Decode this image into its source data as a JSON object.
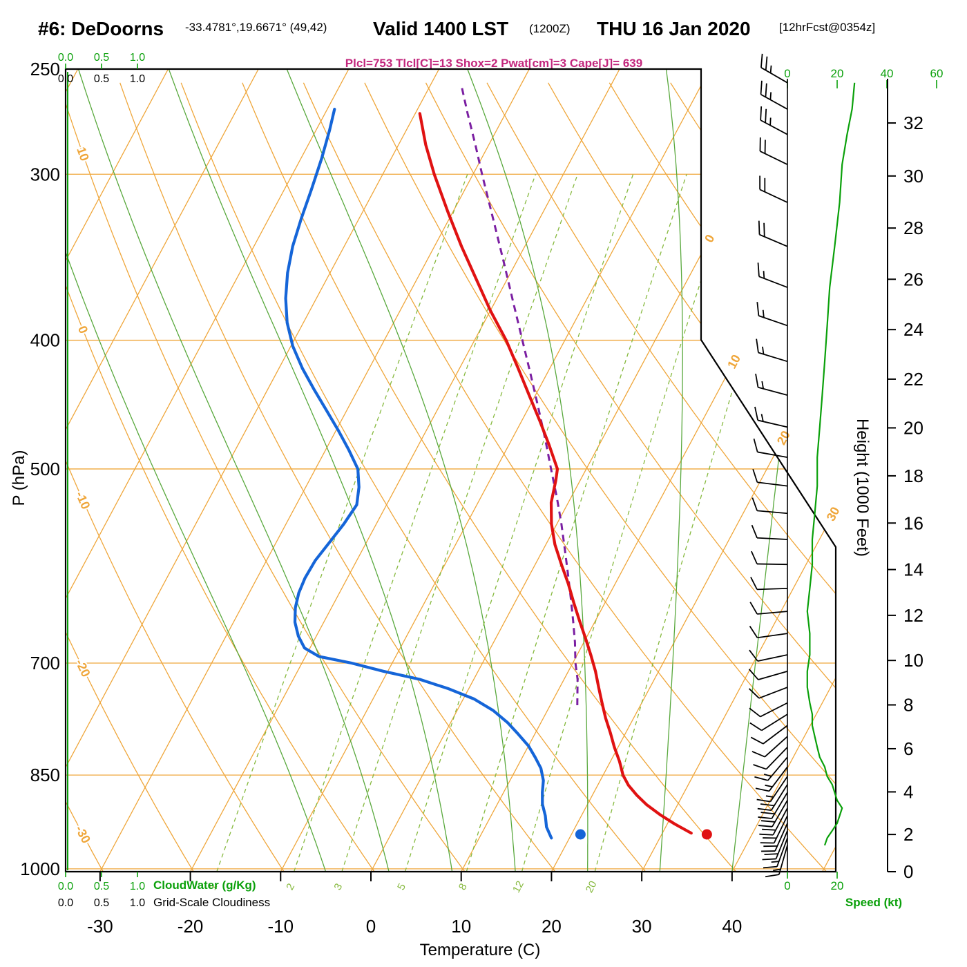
{
  "title": {
    "station": "#6: DeDoorns",
    "coords": "-33.4781°,19.6671° (49,42)",
    "valid": "Valid 1400 LST",
    "zulu": "(1200Z)",
    "date": "THU 16 Jan 2020",
    "fcst": "[12hrFcst@0354z]",
    "params": "Plcl=753 Tlcl[C]=13 Shox=2 Pwat[cm]=3 Cape[J]= 639"
  },
  "axes": {
    "pressure": {
      "label": "P (hPa)",
      "ticks": [
        250,
        300,
        400,
        500,
        700,
        850,
        1000
      ]
    },
    "temperature": {
      "label": "Temperature (C)",
      "ticks": [
        -30,
        -20,
        -10,
        0,
        10,
        20,
        30,
        40
      ]
    },
    "height": {
      "label": "Height (1000 Feet)"
    },
    "speed": {
      "label": "Speed (kt)",
      "ticks": [
        0,
        20,
        40,
        60
      ],
      "bottom_ticks": [
        0,
        20
      ]
    },
    "cloudwater": {
      "label": "CloudWater (g/Kg)",
      "ticks": [
        "0.0",
        "0.5",
        "1.0"
      ]
    },
    "cloudiness": {
      "label": "Grid-Scale Cloudiness",
      "ticks": [
        "0.0",
        "0.5",
        "1.0"
      ]
    }
  },
  "colors": {
    "isotherm": "#efa63a",
    "pressure_line": "#efa63a",
    "dry_adiabat": "#efa63a",
    "moist_adiabat": "#58a83c",
    "mixing_ratio": "#86b93e",
    "temperature": "#e01212",
    "dewpoint": "#1565d8",
    "parcel": "#7b1fa2",
    "wind_barb": "#000000",
    "speed_curve": "#0aa00a",
    "green_axis": "#0aa00a",
    "params_text": "#c2267c"
  },
  "chart_data": {
    "type": "skewt_log_p_sounding",
    "pressure_range_hPa": [
      250,
      1005
    ],
    "indices": {
      "Plcl_hPa": 753,
      "Tlcl_C": 13,
      "Showalter": 2,
      "Pwat_cm": 3,
      "Cape_J": 639
    },
    "temperature_profile": {
      "name": "Temperature (C)",
      "points_p_t": [
        [
          940,
          33.2
        ],
        [
          925,
          30.8
        ],
        [
          910,
          28.6
        ],
        [
          895,
          26.6
        ],
        [
          880,
          24.9
        ],
        [
          865,
          23.4
        ],
        [
          850,
          22.2
        ],
        [
          830,
          21.0
        ],
        [
          810,
          19.6
        ],
        [
          790,
          18.3
        ],
        [
          770,
          16.9
        ],
        [
          750,
          15.6
        ],
        [
          730,
          14.3
        ],
        [
          710,
          13.0
        ],
        [
          690,
          11.5
        ],
        [
          670,
          9.9
        ],
        [
          650,
          8.2
        ],
        [
          630,
          6.5
        ],
        [
          610,
          4.8
        ],
        [
          590,
          2.9
        ],
        [
          570,
          1.0
        ],
        [
          550,
          -0.6
        ],
        [
          530,
          -1.9
        ],
        [
          510,
          -2.7
        ],
        [
          500,
          -3.2
        ],
        [
          480,
          -5.5
        ],
        [
          460,
          -8.0
        ],
        [
          440,
          -10.7
        ],
        [
          420,
          -13.5
        ],
        [
          400,
          -16.5
        ],
        [
          380,
          -20.0
        ],
        [
          360,
          -23.4
        ],
        [
          340,
          -27.0
        ],
        [
          320,
          -30.6
        ],
        [
          300,
          -34.3
        ],
        [
          285,
          -37.0
        ],
        [
          270,
          -39.5
        ]
      ]
    },
    "dewpoint_profile": {
      "name": "Dewpoint (C)",
      "points_p_t": [
        [
          948,
          18.0
        ],
        [
          930,
          16.8
        ],
        [
          912,
          16.0
        ],
        [
          894,
          15.0
        ],
        [
          876,
          14.3
        ],
        [
          858,
          13.7
        ],
        [
          840,
          12.7
        ],
        [
          824,
          11.4
        ],
        [
          808,
          10.0
        ],
        [
          792,
          8.2
        ],
        [
          776,
          6.3
        ],
        [
          760,
          4.0
        ],
        [
          745,
          1.2
        ],
        [
          732,
          -2.2
        ],
        [
          720,
          -6.0
        ],
        [
          710,
          -10.5
        ],
        [
          700,
          -14.5
        ],
        [
          692,
          -18.5
        ],
        [
          682,
          -20.6
        ],
        [
          668,
          -22.0
        ],
        [
          652,
          -23.2
        ],
        [
          636,
          -24.0
        ],
        [
          620,
          -24.5
        ],
        [
          604,
          -24.7
        ],
        [
          586,
          -24.6
        ],
        [
          568,
          -24.1
        ],
        [
          550,
          -23.6
        ],
        [
          532,
          -23.3
        ],
        [
          516,
          -24.1
        ],
        [
          500,
          -25.3
        ],
        [
          484,
          -27.4
        ],
        [
          468,
          -29.7
        ],
        [
          452,
          -32.2
        ],
        [
          436,
          -34.8
        ],
        [
          420,
          -37.4
        ],
        [
          404,
          -39.8
        ],
        [
          388,
          -41.8
        ],
        [
          372,
          -43.4
        ],
        [
          356,
          -44.7
        ],
        [
          340,
          -45.7
        ],
        [
          324,
          -46.4
        ],
        [
          308,
          -47.0
        ],
        [
          292,
          -47.7
        ],
        [
          278,
          -48.5
        ],
        [
          268,
          -49.2
        ]
      ]
    },
    "parcel_profile": {
      "name": "Lifted parcel",
      "points_p_t": [
        [
          753,
          13.0
        ],
        [
          720,
          11.5
        ],
        [
          700,
          10.3
        ],
        [
          675,
          9.0
        ],
        [
          650,
          7.5
        ],
        [
          625,
          5.9
        ],
        [
          600,
          4.2
        ],
        [
          575,
          2.4
        ],
        [
          550,
          0.5
        ],
        [
          525,
          -1.6
        ],
        [
          500,
          -3.9
        ],
        [
          475,
          -6.3
        ],
        [
          450,
          -8.9
        ],
        [
          425,
          -11.7
        ],
        [
          400,
          -14.7
        ],
        [
          375,
          -17.9
        ],
        [
          350,
          -21.3
        ],
        [
          325,
          -25.0
        ],
        [
          300,
          -29.0
        ],
        [
          285,
          -31.5
        ],
        [
          270,
          -34.2
        ],
        [
          258,
          -36.4
        ]
      ]
    },
    "surface_markers": [
      {
        "name": "surface-temperature-dot",
        "p": 942,
        "t": 35.0
      },
      {
        "name": "surface-dewpoint-dot",
        "p": 942,
        "t": 21.0
      }
    ],
    "winds_p_kt_dir": [
      [
        960,
        15,
        196
      ],
      [
        948,
        16,
        200
      ],
      [
        936,
        18,
        202
      ],
      [
        924,
        20,
        204
      ],
      [
        912,
        21,
        206
      ],
      [
        900,
        22,
        208
      ],
      [
        888,
        20,
        210
      ],
      [
        876,
        19,
        211
      ],
      [
        864,
        18,
        212
      ],
      [
        852,
        16,
        214
      ],
      [
        838,
        15,
        217
      ],
      [
        824,
        13,
        220
      ],
      [
        810,
        12,
        224
      ],
      [
        795,
        11,
        228
      ],
      [
        780,
        10,
        233
      ],
      [
        765,
        10,
        238
      ],
      [
        750,
        9,
        243
      ],
      [
        730,
        8,
        249
      ],
      [
        710,
        8,
        254
      ],
      [
        690,
        9,
        258
      ],
      [
        665,
        9,
        262
      ],
      [
        640,
        8,
        265
      ],
      [
        615,
        9,
        268
      ],
      [
        590,
        10,
        271
      ],
      [
        565,
        10,
        273
      ],
      [
        540,
        11,
        275
      ],
      [
        515,
        12,
        277
      ],
      [
        490,
        12,
        280
      ],
      [
        465,
        13,
        283
      ],
      [
        440,
        14,
        285
      ],
      [
        415,
        15,
        287
      ],
      [
        390,
        16,
        289
      ],
      [
        365,
        17,
        291
      ],
      [
        340,
        19,
        293
      ],
      [
        315,
        21,
        295
      ],
      [
        295,
        22,
        296
      ],
      [
        280,
        24,
        298
      ],
      [
        268,
        26,
        299
      ],
      [
        256,
        27,
        300
      ]
    ],
    "height_ticks_kft": [
      0,
      2,
      4,
      6,
      8,
      10,
      12,
      14,
      16,
      18,
      20,
      22,
      24,
      26,
      28,
      30,
      32
    ],
    "isotherm_label_values": [
      0,
      10,
      20,
      30
    ],
    "dry_adiabat_label_values": [
      10,
      0,
      -10,
      -20,
      -30
    ],
    "mixing_ratio_g_kg": [
      1,
      2,
      3,
      5,
      8,
      12,
      20
    ],
    "moist_adiabat_start_temps_C": [
      -5,
      2,
      9,
      16,
      24,
      32,
      40
    ]
  }
}
